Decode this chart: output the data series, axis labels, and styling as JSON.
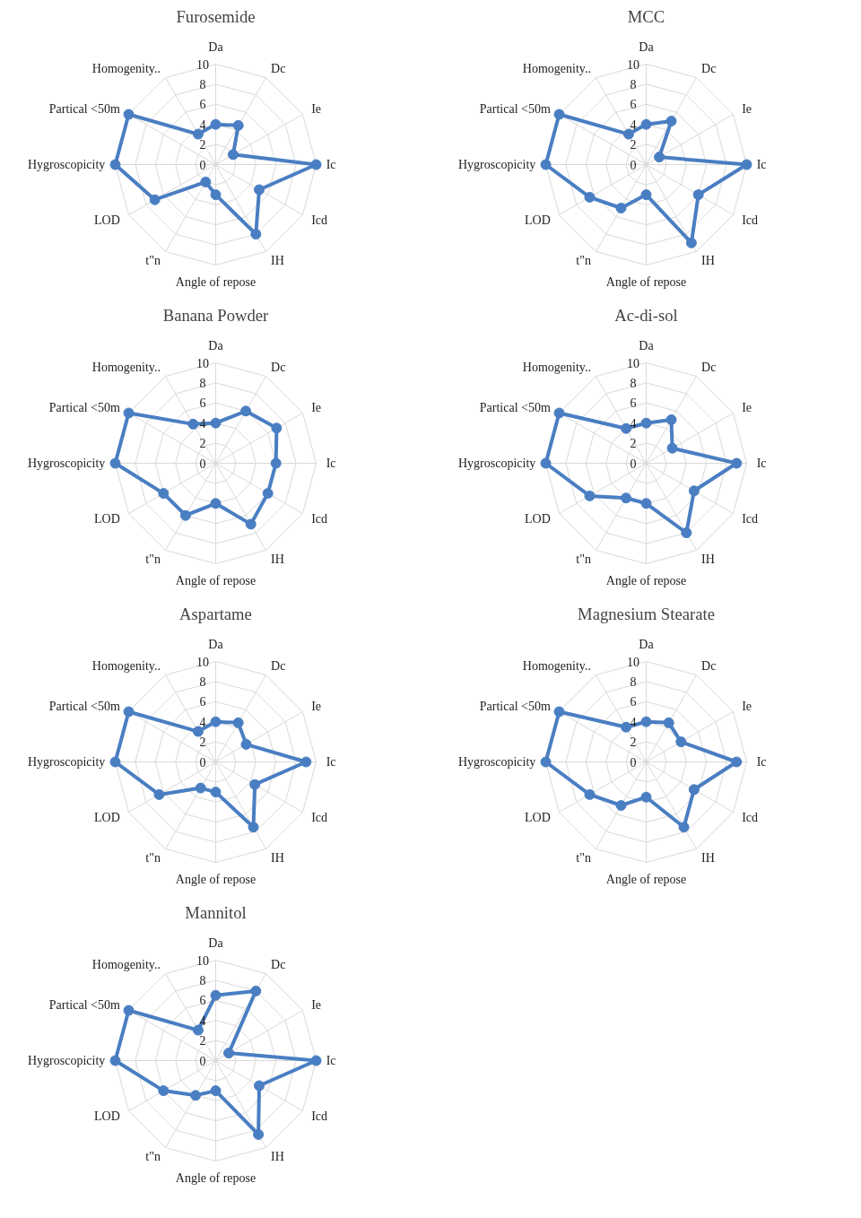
{
  "chart_data": [
    {
      "type": "radar",
      "title": "Furosemide",
      "categories": [
        "Da",
        "Dc",
        "Ie",
        "Ic",
        "Icd",
        "IH",
        "Angle of repose",
        "t\"n",
        "LOD",
        "Hygroscopicity",
        "Partical <50m",
        "Homogenity.."
      ],
      "series": [
        {
          "color": "#4a7ec2",
          "values": [
            4,
            4.5,
            2,
            10,
            5,
            8,
            3,
            2,
            7,
            10,
            10,
            3.5
          ]
        }
      ],
      "ylim": [
        0,
        10
      ],
      "yticks": [
        0,
        2,
        4,
        6,
        8,
        10
      ],
      "grid": true,
      "marker": "circle"
    },
    {
      "type": "radar",
      "title": "MCC",
      "categories": [
        "Da",
        "Dc",
        "Ie",
        "Ic",
        "Icd",
        "IH",
        "Angle of repose",
        "t\"n",
        "LOD",
        "Hygroscopicity",
        "Partical <50m",
        "Homogenity.."
      ],
      "series": [
        {
          "color": "#4a7ec2",
          "values": [
            4,
            5,
            1.5,
            10,
            6,
            9,
            3,
            5,
            6.5,
            10,
            10,
            3.5
          ]
        }
      ],
      "ylim": [
        0,
        10
      ],
      "yticks": [
        0,
        2,
        4,
        6,
        8,
        10
      ],
      "grid": true,
      "marker": "circle"
    },
    {
      "type": "radar",
      "title": "Banana Powder",
      "categories": [
        "Da",
        "Dc",
        "Ie",
        "Ic",
        "Icd",
        "IH",
        "Angle of repose",
        "t\"n",
        "LOD",
        "Hygroscopicity",
        "Partical <50m",
        "Homogenity.."
      ],
      "series": [
        {
          "color": "#4a7ec2",
          "values": [
            4,
            6,
            7,
            6,
            6,
            7,
            4,
            6,
            6,
            10,
            10,
            4.5
          ]
        }
      ],
      "ylim": [
        0,
        10
      ],
      "yticks": [
        0,
        2,
        4,
        6,
        8,
        10
      ],
      "grid": true,
      "marker": "circle"
    },
    {
      "type": "radar",
      "title": "Ac-di-sol",
      "categories": [
        "Da",
        "Dc",
        "Ie",
        "Ic",
        "Icd",
        "IH",
        "Angle of repose",
        "t\"n",
        "LOD",
        "Hygroscopicity",
        "Partical <50m",
        "Homogenity.."
      ],
      "series": [
        {
          "color": "#4a7ec2",
          "values": [
            4,
            5,
            3,
            9,
            5.5,
            8,
            4,
            4,
            6.5,
            10,
            10,
            4
          ]
        }
      ],
      "ylim": [
        0,
        10
      ],
      "yticks": [
        0,
        2,
        4,
        6,
        8,
        10
      ],
      "grid": true,
      "marker": "circle"
    },
    {
      "type": "radar",
      "title": "Aspartame",
      "categories": [
        "Da",
        "Dc",
        "Ie",
        "Ic",
        "Icd",
        "IH",
        "Angle of repose",
        "t\"n",
        "LOD",
        "Hygroscopicity",
        "Partical <50m",
        "Homogenity.."
      ],
      "series": [
        {
          "color": "#4a7ec2",
          "values": [
            4,
            4.5,
            3.5,
            9,
            4.5,
            7.5,
            3,
            3,
            6.5,
            10,
            10,
            3.5
          ]
        }
      ],
      "ylim": [
        0,
        10
      ],
      "yticks": [
        0,
        2,
        4,
        6,
        8,
        10
      ],
      "grid": true,
      "marker": "circle"
    },
    {
      "type": "radar",
      "title": "Magnesium Stearate",
      "categories": [
        "Da",
        "Dc",
        "Ie",
        "Ic",
        "Icd",
        "IH",
        "Angle of repose",
        "t\"n",
        "LOD",
        "Hygroscopicity",
        "Partical <50m",
        "Homogenity.."
      ],
      "series": [
        {
          "color": "#4a7ec2",
          "values": [
            4,
            4.5,
            4,
            9,
            5.5,
            7.5,
            3.5,
            5,
            6.5,
            10,
            10,
            4
          ]
        }
      ],
      "ylim": [
        0,
        10
      ],
      "yticks": [
        0,
        2,
        4,
        6,
        8,
        10
      ],
      "grid": true,
      "marker": "circle"
    },
    {
      "type": "radar",
      "title": "Mannitol",
      "categories": [
        "Da",
        "Dc",
        "Ie",
        "Ic",
        "Icd",
        "IH",
        "Angle of repose",
        "t\"n",
        "LOD",
        "Hygroscopicity",
        "Partical <50m",
        "Homogenity.."
      ],
      "series": [
        {
          "color": "#4a7ec2",
          "values": [
            6.5,
            8,
            1.5,
            10,
            5,
            8.5,
            3,
            4,
            6,
            10,
            10,
            3.5
          ]
        }
      ],
      "ylim": [
        0,
        10
      ],
      "yticks": [
        0,
        2,
        4,
        6,
        8,
        10
      ],
      "grid": true,
      "marker": "circle"
    }
  ]
}
